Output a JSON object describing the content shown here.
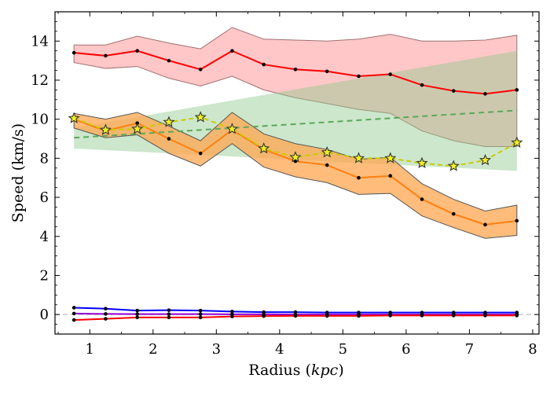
{
  "chart_data": {
    "type": "line",
    "xlabel_main": "Radius (",
    "xlabel_unit": "kpc",
    "xlabel_close": ")",
    "ylabel": "Speed (km/s)",
    "xlim": [
      0.45,
      8.1
    ],
    "ylim": [
      -1.0,
      15.5
    ],
    "xticks": [
      1,
      2,
      3,
      4,
      5,
      6,
      7,
      8
    ],
    "yticks": [
      0,
      2,
      4,
      6,
      8,
      10,
      12,
      14
    ],
    "x": [
      0.75,
      1.25,
      1.75,
      2.25,
      2.75,
      3.25,
      3.75,
      4.25,
      4.75,
      5.25,
      5.75,
      6.25,
      6.75,
      7.25,
      7.75
    ],
    "series": [
      {
        "style": "red-line-with-band",
        "color": "#ff0000",
        "values": [
          13.4,
          13.25,
          13.5,
          13.0,
          12.55,
          13.5,
          12.8,
          12.55,
          12.45,
          12.2,
          12.3,
          11.75,
          11.45,
          11.3,
          11.5
        ],
        "band_color": "#ff9999",
        "band_lower": [
          12.9,
          12.6,
          12.7,
          12.1,
          11.7,
          12.2,
          11.5,
          11.1,
          10.8,
          10.5,
          10.3,
          9.4,
          8.9,
          8.6,
          8.6
        ],
        "band_upper": [
          13.8,
          13.8,
          14.25,
          13.9,
          13.6,
          14.7,
          14.1,
          14.05,
          14.0,
          14.1,
          14.35,
          14.0,
          14.0,
          14.05,
          14.3
        ]
      },
      {
        "style": "orange-line-with-band",
        "color": "#ff7f0e",
        "values": [
          10.0,
          9.4,
          9.8,
          9.0,
          8.25,
          9.45,
          8.45,
          7.85,
          7.65,
          7.0,
          7.1,
          5.9,
          5.15,
          4.6,
          4.8
        ],
        "band_color": "#ffa54f",
        "band_lower": [
          9.55,
          9.05,
          9.2,
          8.25,
          7.6,
          8.75,
          7.55,
          7.05,
          6.75,
          6.15,
          6.2,
          5.05,
          4.45,
          3.9,
          4.05
        ],
        "band_upper": [
          10.3,
          10.0,
          10.35,
          9.65,
          8.9,
          10.35,
          9.25,
          8.75,
          8.45,
          7.95,
          8.05,
          6.7,
          5.9,
          5.3,
          5.6
        ]
      },
      {
        "style": "blue-line",
        "color": "#0000ff",
        "values": [
          0.35,
          0.3,
          0.2,
          0.22,
          0.2,
          0.15,
          0.12,
          0.12,
          0.1,
          0.1,
          0.1,
          0.1,
          0.1,
          0.1,
          0.1
        ]
      },
      {
        "style": "purple-line",
        "color": "#9400d3",
        "values": [
          0.05,
          0.03,
          0.02,
          0.02,
          0.02,
          0.01,
          0.01,
          0.0,
          0.0,
          0.0,
          0.0,
          0.0,
          0.0,
          0.0,
          0.0
        ]
      },
      {
        "style": "red-low-line",
        "color": "#ff0000",
        "values": [
          -0.28,
          -0.22,
          -0.15,
          -0.15,
          -0.15,
          -0.1,
          -0.08,
          -0.07,
          -0.07,
          -0.07,
          -0.05,
          -0.05,
          -0.05,
          -0.05,
          -0.05
        ]
      },
      {
        "style": "yellow-dashed-stars",
        "color": "#cccc00",
        "values": [
          10.05,
          9.45,
          9.5,
          9.85,
          10.1,
          9.5,
          8.5,
          8.05,
          8.3,
          8.0,
          8.0,
          7.75,
          7.6,
          7.9,
          8.8
        ]
      }
    ],
    "trend_line": {
      "color": "#5aa85a",
      "x": [
        0.75,
        7.75
      ],
      "values": [
        9.05,
        10.45
      ]
    },
    "green_band": {
      "color": "#8fc98f",
      "x": [
        0.75,
        7.75
      ],
      "lower": [
        8.5,
        7.35
      ],
      "upper": [
        9.55,
        13.5
      ]
    },
    "zero_line": {
      "value": 0,
      "color": "#bbbbbb"
    }
  }
}
